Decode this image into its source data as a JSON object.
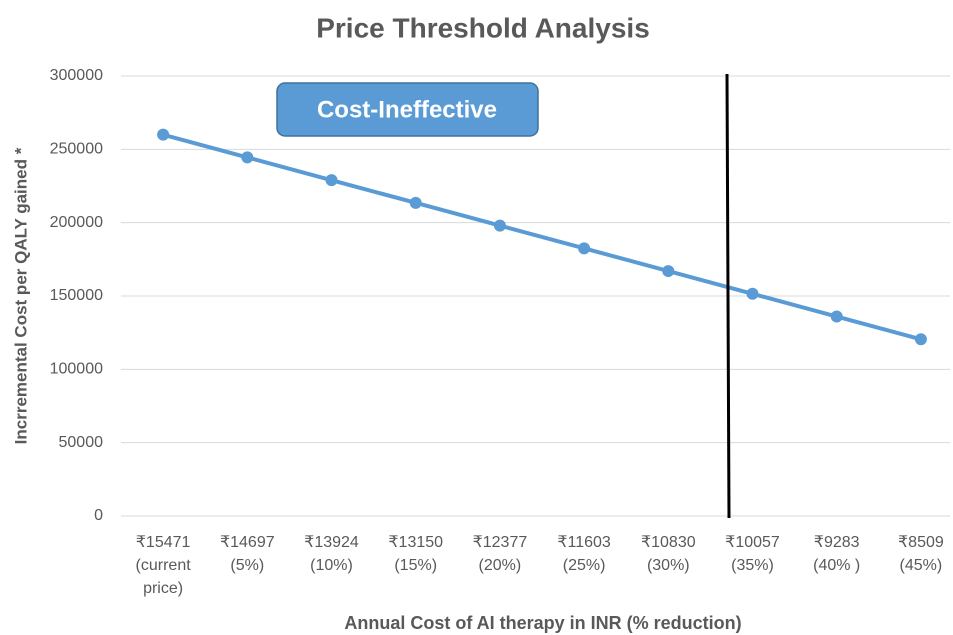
{
  "chart_data": {
    "type": "line",
    "title": "Price Threshold Analysis",
    "x_label": "Annual Cost of AI therapy in INR (% reduction)",
    "y_label": "Incrremental Cost per QALY gained *",
    "annotation": "Cost-Ineffective",
    "categories": [
      [
        "₹15471",
        "(current",
        "price)"
      ],
      [
        "₹14697",
        "(5%)"
      ],
      [
        "₹13924",
        "(10%)"
      ],
      [
        "₹13150",
        "(15%)"
      ],
      [
        "₹12377",
        "(20%)"
      ],
      [
        "₹11603",
        "(25%)"
      ],
      [
        "₹10830",
        "(30%)"
      ],
      [
        "₹10057",
        "(35%)"
      ],
      [
        "₹9283",
        "(40% )"
      ],
      [
        "₹8509",
        "(45%)"
      ]
    ],
    "series": [
      {
        "name": "Incremental Cost per QALY",
        "color": "#5b9bd5",
        "values": [
          260000,
          244500,
          229000,
          213500,
          198000,
          182500,
          167000,
          151500,
          136000,
          120500
        ]
      }
    ],
    "ylim": [
      0,
      300000
    ],
    "yticks": [
      0,
      50000,
      100000,
      150000,
      200000,
      250000,
      300000
    ],
    "grid": true
  }
}
